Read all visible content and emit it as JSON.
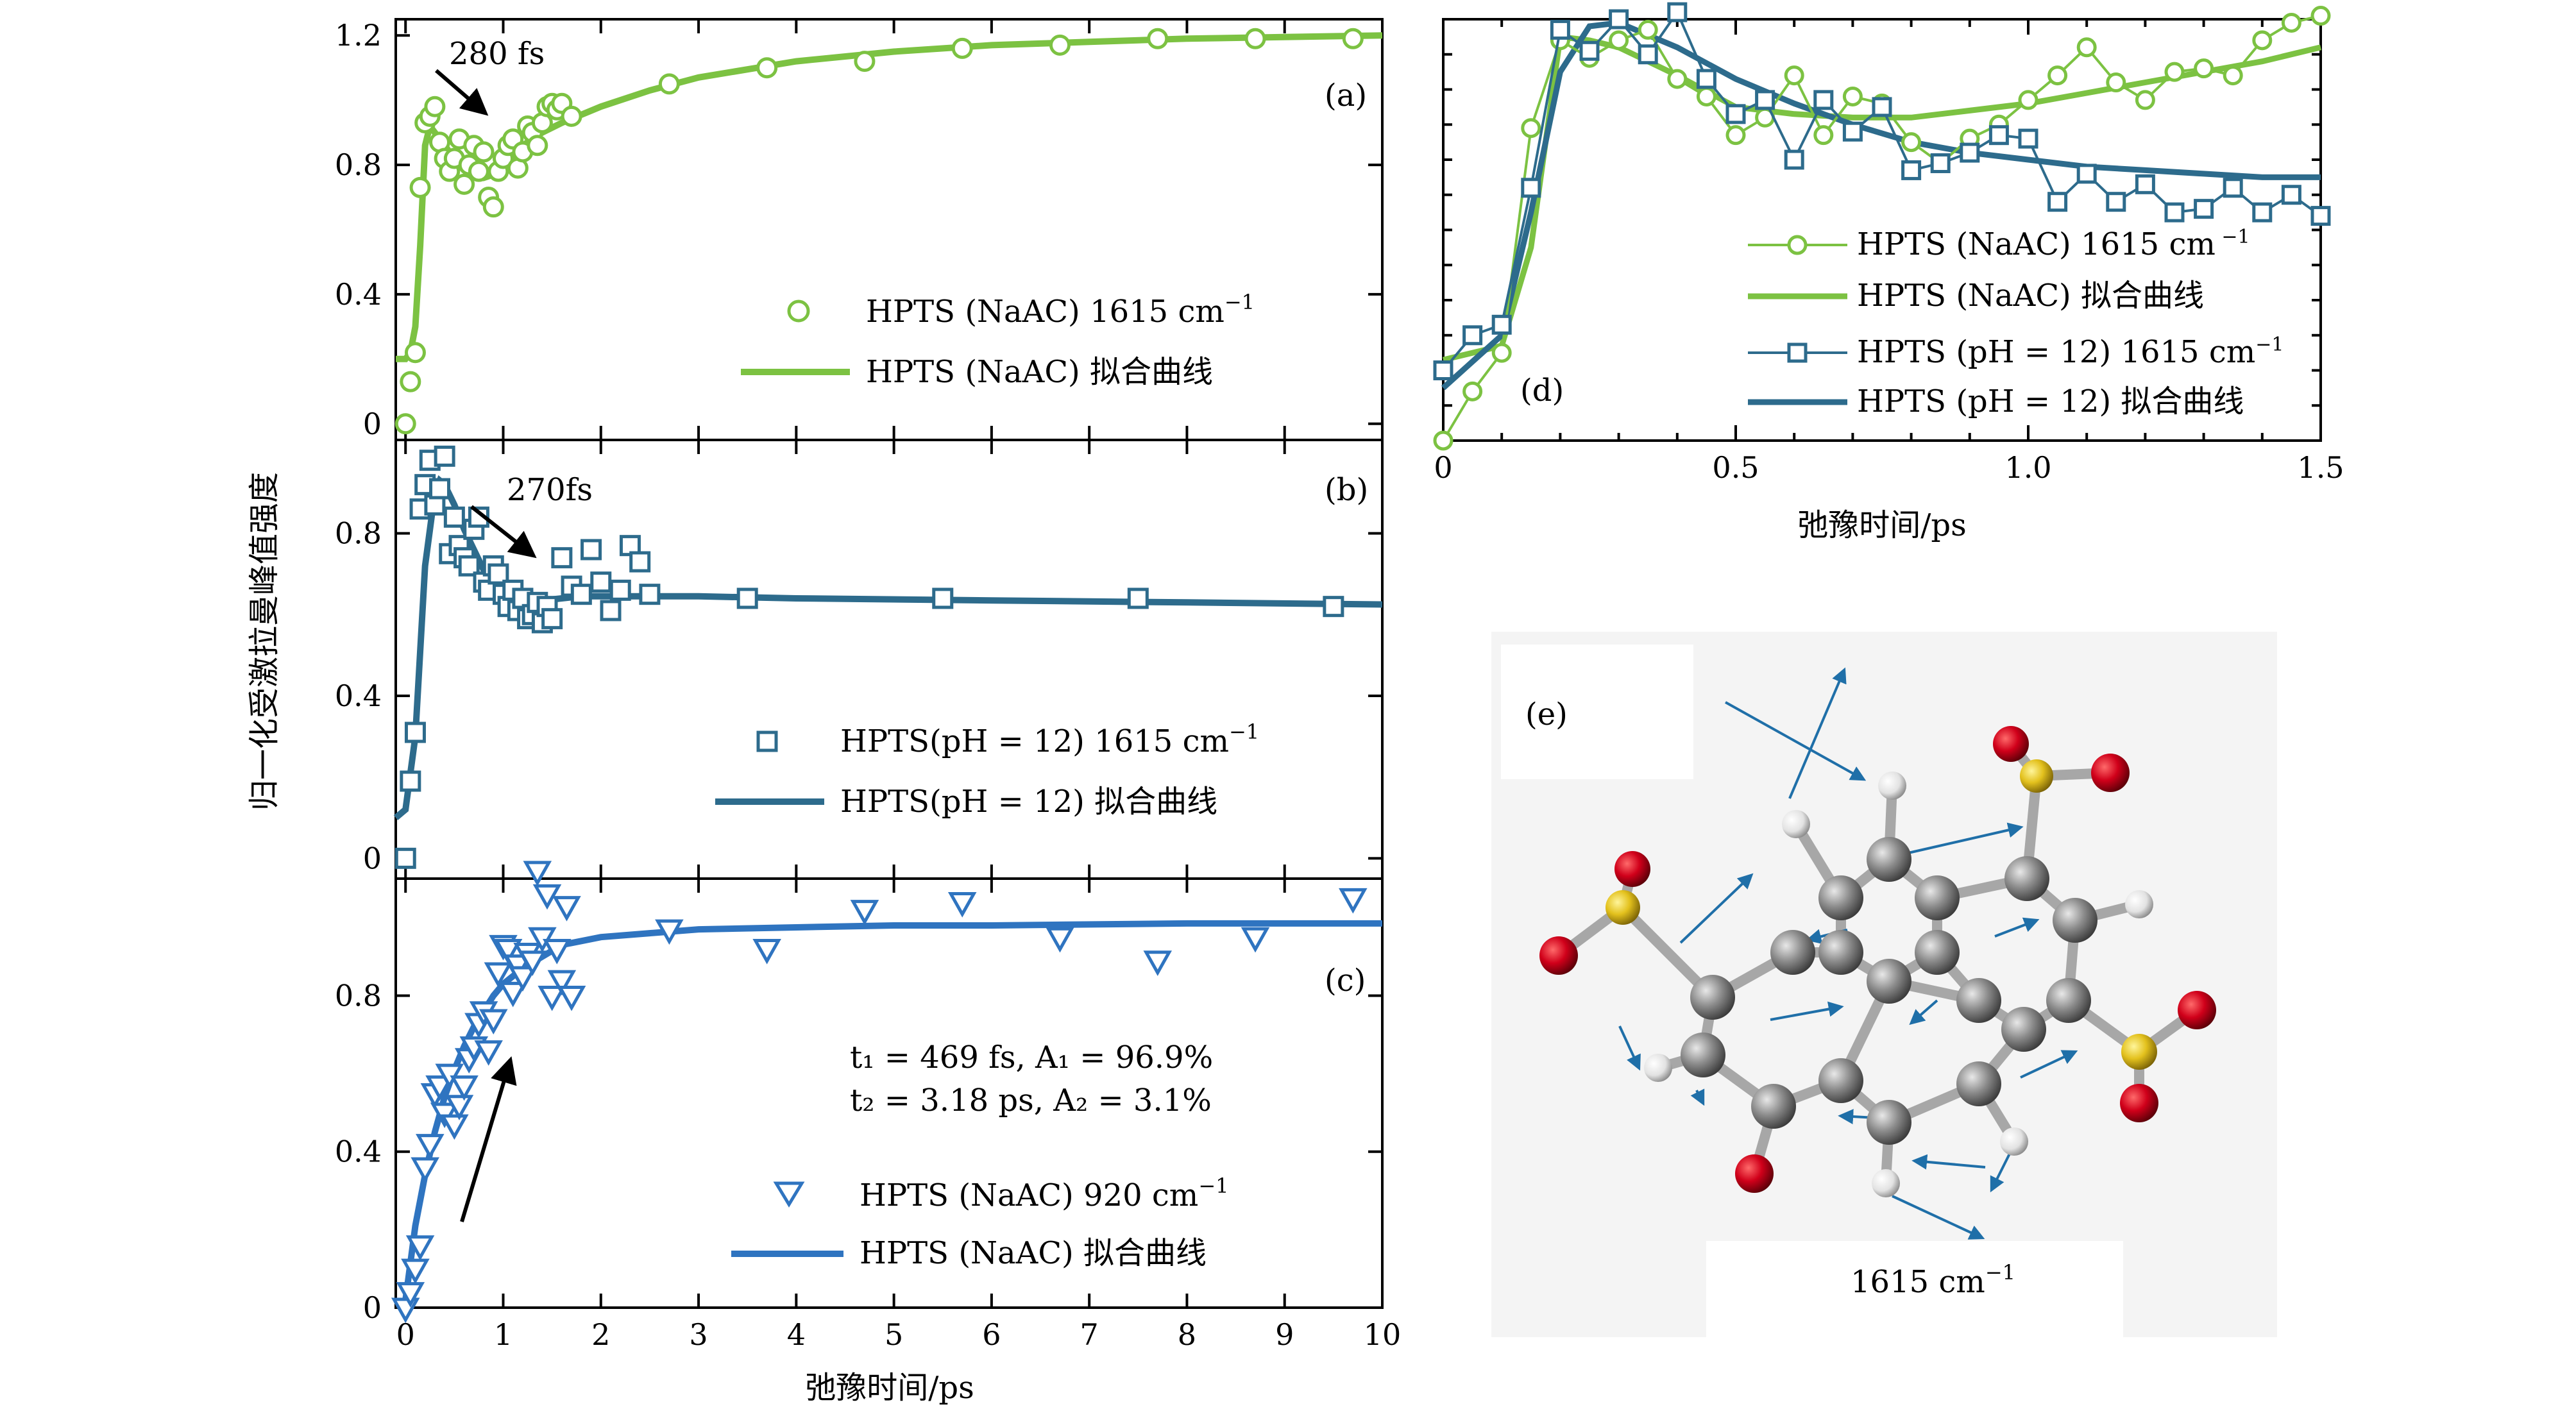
{
  "figure": {
    "ylabel": "归一化受激拉曼峰值强度",
    "xlabel": "弛豫时间/ps"
  },
  "colors": {
    "green": "#7cc242",
    "teal": "#2d6b8c",
    "blue": "#2f74c0"
  },
  "chart_data": [
    {
      "id": "a",
      "type": "scatter",
      "panel_label": "(a)",
      "xlim": [
        -0.1,
        10
      ],
      "ylim": [
        -0.05,
        1.25
      ],
      "yticks": [
        0,
        0.4,
        0.8,
        1.2
      ],
      "ytick_labels": [
        "0",
        "0.4",
        "0.8",
        "1.2"
      ],
      "annotation": "280 fs",
      "legend": {
        "scatter": "HPTS (NaAC) 1615 cm",
        "fit": "HPTS (NaAC) 拟合曲线"
      },
      "series": [
        {
          "name": "HPTS (NaAC) 1615 cm-1",
          "marker": "circle",
          "color": "#7cc242",
          "x": [
            0,
            0.05,
            0.1,
            0.15,
            0.2,
            0.25,
            0.3,
            0.35,
            0.4,
            0.45,
            0.5,
            0.55,
            0.6,
            0.65,
            0.7,
            0.75,
            0.8,
            0.85,
            0.9,
            0.95,
            1.0,
            1.05,
            1.1,
            1.15,
            1.2,
            1.25,
            1.3,
            1.35,
            1.4,
            1.45,
            1.5,
            1.55,
            1.6,
            1.7,
            2.7,
            3.7,
            4.7,
            5.7,
            6.7,
            7.7,
            8.7,
            9.7
          ],
          "y": [
            0.0,
            0.13,
            0.22,
            0.73,
            0.93,
            0.95,
            0.98,
            0.87,
            0.82,
            0.78,
            0.82,
            0.88,
            0.74,
            0.8,
            0.86,
            0.78,
            0.84,
            0.7,
            0.67,
            0.78,
            0.82,
            0.86,
            0.88,
            0.79,
            0.84,
            0.92,
            0.9,
            0.86,
            0.93,
            0.98,
            0.99,
            0.97,
            0.99,
            0.95,
            1.05,
            1.1,
            1.12,
            1.16,
            1.17,
            1.19,
            1.19,
            1.19
          ]
        },
        {
          "name": "HPTS (NaAC) 拟合曲线",
          "color": "#7cc242",
          "x": [
            -0.1,
            0,
            0.05,
            0.1,
            0.15,
            0.2,
            0.25,
            0.3,
            0.4,
            0.5,
            0.6,
            0.7,
            0.8,
            0.9,
            1.0,
            1.1,
            1.2,
            1.4,
            1.6,
            2.0,
            2.5,
            3,
            4,
            5,
            6,
            7,
            8,
            9,
            10
          ],
          "y": [
            0.2,
            0.2,
            0.22,
            0.3,
            0.55,
            0.86,
            0.92,
            0.9,
            0.86,
            0.82,
            0.79,
            0.77,
            0.76,
            0.77,
            0.8,
            0.83,
            0.86,
            0.9,
            0.93,
            0.98,
            1.03,
            1.07,
            1.12,
            1.15,
            1.17,
            1.18,
            1.19,
            1.195,
            1.2
          ]
        }
      ]
    },
    {
      "id": "b",
      "type": "scatter",
      "panel_label": "(b)",
      "xlim": [
        -0.1,
        10
      ],
      "ylim": [
        -0.05,
        1.03
      ],
      "yticks": [
        0,
        0.4,
        0.8
      ],
      "ytick_labels": [
        "0",
        "0.4",
        "0.8"
      ],
      "annotation": "270fs",
      "legend": {
        "scatter": "HPTS(pH = 12) 1615 cm",
        "fit": "HPTS(pH = 12) 拟合曲线"
      },
      "series": [
        {
          "name": "HPTS(pH = 12) 1615 cm-1",
          "marker": "square",
          "color": "#2d6b8c",
          "x": [
            0,
            0.05,
            0.1,
            0.15,
            0.2,
            0.25,
            0.3,
            0.35,
            0.4,
            0.45,
            0.5,
            0.55,
            0.6,
            0.65,
            0.7,
            0.75,
            0.8,
            0.85,
            0.9,
            0.95,
            1.0,
            1.05,
            1.1,
            1.15,
            1.2,
            1.25,
            1.3,
            1.35,
            1.4,
            1.45,
            1.5,
            1.6,
            1.7,
            1.8,
            1.9,
            2.0,
            2.1,
            2.2,
            2.3,
            2.4,
            2.5,
            3.5,
            5.5,
            7.5,
            9.5
          ],
          "y": [
            0.0,
            0.19,
            0.31,
            0.86,
            0.92,
            0.98,
            0.87,
            0.91,
            0.99,
            0.75,
            0.84,
            0.77,
            0.74,
            0.72,
            0.81,
            0.84,
            0.68,
            0.66,
            0.72,
            0.7,
            0.65,
            0.62,
            0.66,
            0.61,
            0.64,
            0.59,
            0.6,
            0.63,
            0.58,
            0.62,
            0.59,
            0.74,
            0.67,
            0.65,
            0.76,
            0.68,
            0.61,
            0.66,
            0.77,
            0.73,
            0.65,
            0.64,
            0.64,
            0.64,
            0.62
          ]
        },
        {
          "name": "HPTS(pH = 12) 拟合曲线",
          "color": "#2d6b8c",
          "x": [
            -0.1,
            0,
            0.1,
            0.2,
            0.3,
            0.35,
            0.4,
            0.5,
            0.6,
            0.7,
            0.8,
            0.9,
            1.0,
            1.1,
            1.2,
            1.3,
            1.4,
            1.6,
            1.8,
            2.0,
            2.5,
            3,
            4,
            6,
            8,
            10
          ],
          "y": [
            0.1,
            0.12,
            0.3,
            0.72,
            0.9,
            0.93,
            0.92,
            0.87,
            0.81,
            0.76,
            0.71,
            0.68,
            0.66,
            0.65,
            0.64,
            0.635,
            0.635,
            0.64,
            0.645,
            0.645,
            0.645,
            0.645,
            0.64,
            0.635,
            0.63,
            0.625
          ]
        }
      ]
    },
    {
      "id": "c",
      "type": "scatter",
      "panel_label": "(c)",
      "xlim": [
        -0.1,
        10
      ],
      "ylim": [
        0,
        1.1
      ],
      "yticks": [
        0,
        0.4,
        0.8
      ],
      "ytick_labels": [
        "0",
        "0.4",
        "0.8"
      ],
      "xticks": [
        0,
        1,
        2,
        3,
        4,
        5,
        6,
        7,
        8,
        9,
        10
      ],
      "xtick_labels": [
        "0",
        "1",
        "2",
        "3",
        "4",
        "5",
        "6",
        "7",
        "8",
        "9",
        "10"
      ],
      "fit_params": {
        "line1": "t₁ = 469 fs, A₁ = 96.9%",
        "line2": "t₂ = 3.18 ps, A₂ = 3.1%"
      },
      "legend": {
        "scatter": "HPTS (NaAC) 920 cm",
        "fit": "HPTS (NaAC) 拟合曲线"
      },
      "series": [
        {
          "name": "HPTS (NaAC) 920 cm-1",
          "marker": "triangle-down",
          "color": "#2f74c0",
          "x": [
            0,
            0.05,
            0.1,
            0.15,
            0.2,
            0.25,
            0.3,
            0.35,
            0.4,
            0.45,
            0.5,
            0.55,
            0.6,
            0.65,
            0.7,
            0.75,
            0.8,
            0.85,
            0.9,
            0.95,
            1.0,
            1.05,
            1.1,
            1.15,
            1.2,
            1.25,
            1.3,
            1.35,
            1.4,
            1.45,
            1.5,
            1.55,
            1.6,
            1.65,
            1.7,
            2.7,
            3.7,
            4.7,
            5.7,
            6.7,
            7.7,
            8.7,
            9.7
          ],
          "y": [
            0.0,
            0.04,
            0.1,
            0.16,
            0.36,
            0.42,
            0.55,
            0.57,
            0.5,
            0.6,
            0.47,
            0.52,
            0.57,
            0.64,
            0.67,
            0.73,
            0.76,
            0.66,
            0.74,
            0.86,
            0.93,
            0.92,
            0.81,
            0.88,
            0.85,
            0.91,
            0.89,
            1.12,
            0.95,
            1.06,
            0.8,
            0.92,
            0.84,
            1.03,
            0.8,
            0.97,
            0.92,
            1.02,
            1.04,
            0.95,
            0.89,
            0.95,
            1.05
          ]
        },
        {
          "name": "HPTS (NaAC) 拟合曲线",
          "color": "#2f74c0",
          "x": [
            0,
            0.1,
            0.2,
            0.3,
            0.4,
            0.5,
            0.6,
            0.7,
            0.8,
            0.9,
            1.0,
            1.2,
            1.4,
            1.6,
            1.8,
            2.0,
            2.5,
            3,
            4,
            5,
            6,
            8,
            10
          ],
          "y": [
            0.02,
            0.21,
            0.34,
            0.45,
            0.54,
            0.61,
            0.67,
            0.72,
            0.76,
            0.8,
            0.83,
            0.87,
            0.9,
            0.93,
            0.94,
            0.95,
            0.96,
            0.97,
            0.975,
            0.98,
            0.98,
            0.985,
            0.985
          ]
        }
      ]
    },
    {
      "id": "d",
      "type": "line",
      "panel_label": "(d)",
      "xlim": [
        0,
        1.5
      ],
      "ylim": [
        0,
        1.2
      ],
      "xticks": [
        0,
        0.5,
        1.0,
        1.5
      ],
      "xtick_labels": [
        "0",
        "0.5",
        "1.0",
        "1.5"
      ],
      "legend": [
        {
          "label": "HPTS (NaAC) 1615 cm",
          "sup": " −1",
          "kind": "circle-line",
          "color": "#7cc242"
        },
        {
          "label": "HPTS (NaAC) 拟合曲线",
          "sup": "",
          "kind": "line",
          "color": "#7cc242"
        },
        {
          "label": "HPTS (pH = 12) 1615 cm",
          "sup": "−1",
          "kind": "square-line",
          "color": "#2d6b8c"
        },
        {
          "label": "HPTS (pH = 12) 拟合曲线",
          "sup": "",
          "kind": "line",
          "color": "#2d6b8c"
        }
      ],
      "series": [
        {
          "name": "HPTS (NaAC) 1615 cm-1",
          "marker": "circle",
          "color": "#7cc242",
          "x": [
            0,
            0.05,
            0.1,
            0.15,
            0.2,
            0.25,
            0.3,
            0.35,
            0.4,
            0.45,
            0.5,
            0.55,
            0.6,
            0.65,
            0.7,
            0.75,
            0.8,
            0.85,
            0.9,
            0.95,
            1.0,
            1.05,
            1.1,
            1.15,
            1.2,
            1.25,
            1.3,
            1.35,
            1.4,
            1.45,
            1.5
          ],
          "y": [
            0.0,
            0.14,
            0.25,
            0.89,
            1.14,
            1.09,
            1.14,
            1.17,
            1.03,
            0.98,
            0.87,
            0.92,
            1.04,
            0.87,
            0.98,
            0.96,
            0.85,
            0.79,
            0.86,
            0.9,
            0.97,
            1.04,
            1.12,
            1.02,
            0.97,
            1.05,
            1.06,
            1.04,
            1.14,
            1.19,
            1.21
          ]
        },
        {
          "name": "HPTS (NaAC) 拟合曲线",
          "color": "#7cc242",
          "x": [
            0,
            0.1,
            0.15,
            0.2,
            0.25,
            0.3,
            0.4,
            0.5,
            0.6,
            0.7,
            0.8,
            0.9,
            1.0,
            1.1,
            1.2,
            1.3,
            1.4,
            1.5
          ],
          "y": [
            0.23,
            0.27,
            0.55,
            1.15,
            1.14,
            1.12,
            1.04,
            0.95,
            0.93,
            0.92,
            0.92,
            0.94,
            0.96,
            0.99,
            1.02,
            1.05,
            1.08,
            1.12
          ]
        },
        {
          "name": "HPTS (pH = 12) 1615 cm-1",
          "marker": "square",
          "color": "#2d6b8c",
          "x": [
            0,
            0.05,
            0.1,
            0.15,
            0.2,
            0.25,
            0.3,
            0.35,
            0.4,
            0.45,
            0.5,
            0.55,
            0.6,
            0.65,
            0.7,
            0.75,
            0.8,
            0.85,
            0.9,
            0.95,
            1.0,
            1.05,
            1.1,
            1.15,
            1.2,
            1.25,
            1.3,
            1.35,
            1.4,
            1.45,
            1.5
          ],
          "y": [
            0.2,
            0.3,
            0.33,
            0.72,
            1.17,
            1.11,
            1.2,
            1.1,
            1.22,
            1.03,
            0.93,
            0.97,
            0.8,
            0.97,
            0.88,
            0.95,
            0.77,
            0.79,
            0.82,
            0.87,
            0.86,
            0.68,
            0.76,
            0.68,
            0.73,
            0.65,
            0.66,
            0.72,
            0.65,
            0.7,
            0.64
          ]
        },
        {
          "name": "HPTS (pH = 12) 拟合曲线",
          "color": "#2d6b8c",
          "x": [
            0,
            0.1,
            0.15,
            0.2,
            0.25,
            0.3,
            0.4,
            0.5,
            0.6,
            0.7,
            0.8,
            0.9,
            1.0,
            1.1,
            1.2,
            1.3,
            1.4,
            1.5
          ],
          "y": [
            0.15,
            0.3,
            0.65,
            1.05,
            1.18,
            1.19,
            1.12,
            1.03,
            0.96,
            0.9,
            0.85,
            0.82,
            0.8,
            0.78,
            0.77,
            0.76,
            0.75,
            0.75
          ]
        }
      ]
    }
  ],
  "molecule": {
    "panel_label": "(e)",
    "caption": "1615 cm",
    "caption_sup": "−1",
    "atom_colors": {
      "carbon": "#8c8c8c",
      "hydrogen": "#e6e6e6",
      "oxygen": "#c8001e",
      "sulfur": "#e0c020"
    }
  }
}
